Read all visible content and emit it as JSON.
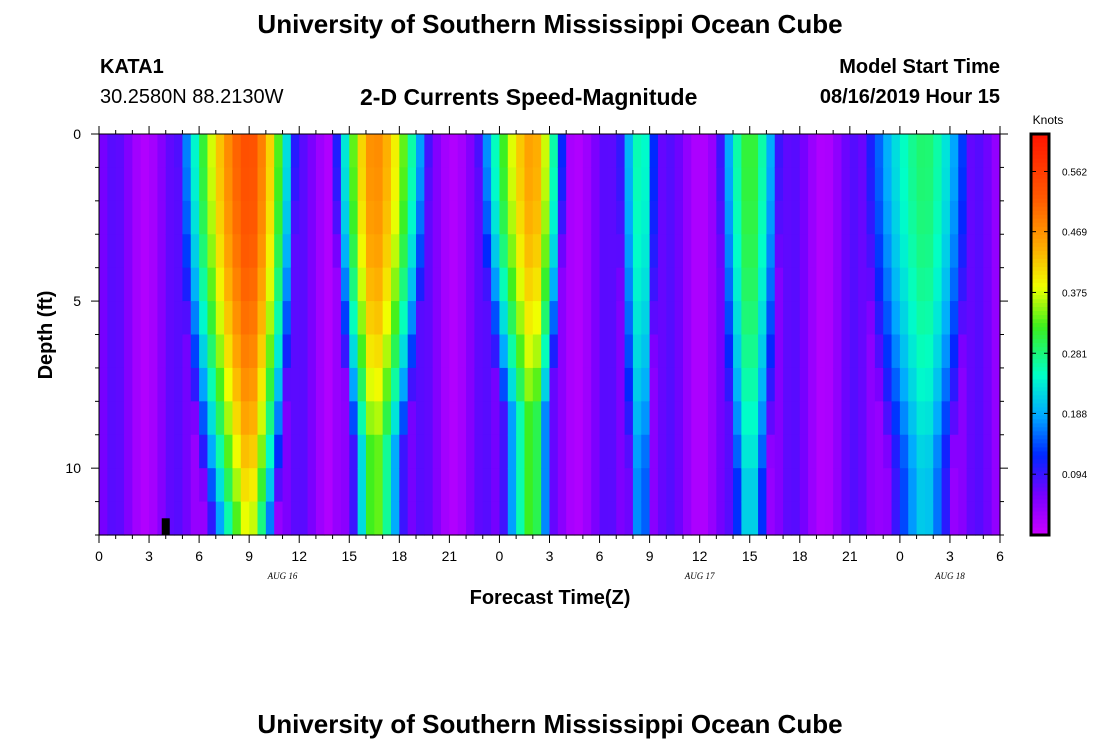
{
  "header": {
    "title": "University of Southern Mississippi Ocean Cube",
    "station": "KATA1",
    "coords": "30.2580N 88.2130W",
    "subtitle": "2-D Currents Speed-Magnitude",
    "model_start_label": "Model Start Time",
    "model_start_value": "08/16/2019 Hour 15"
  },
  "footer": {
    "title": "University of Southern Mississippi Ocean Cube"
  },
  "chart_data": {
    "type": "heatmap",
    "title": "2-D Currents Speed-Magnitude",
    "xlabel": "Forecast Time(Z)",
    "ylabel": "Depth (ft)",
    "x_hours": [
      0,
      54
    ],
    "x_tick_labels": [
      "0",
      "3",
      "6",
      "9",
      "12",
      "15",
      "18",
      "21",
      "0",
      "3",
      "6",
      "9",
      "12",
      "15",
      "18",
      "21",
      "0",
      "3",
      "6"
    ],
    "date_labels": [
      {
        "text": "AUG 16",
        "hour": 11
      },
      {
        "text": "AUG 17",
        "hour": 36
      },
      {
        "text": "AUG 18",
        "hour": 51
      }
    ],
    "ylim": [
      0,
      12
    ],
    "y_tick_labels": [
      "0",
      "5",
      "10"
    ],
    "y_tick_values": [
      0,
      5,
      10
    ],
    "colorbar": {
      "unit": "Knots",
      "min": 0.0,
      "max": 0.62,
      "tick_labels": [
        "0.094",
        "0.188",
        "0.281",
        "0.375",
        "0.469",
        "0.562"
      ],
      "tick_values": [
        0.094,
        0.188,
        0.281,
        0.375,
        0.469,
        0.562
      ]
    },
    "marker": {
      "hour": 4,
      "depth_range": [
        11.5,
        12
      ],
      "color": "#000000"
    },
    "speed_events": [
      {
        "start_hour": 4.5,
        "peak_hour": 9,
        "end_hour": 12,
        "peak": 0.5,
        "max_depth": 11.5
      },
      {
        "start_hour": 14,
        "peak_hour": 16.5,
        "end_hour": 20,
        "peak": 0.44,
        "max_depth": 9.5
      },
      {
        "start_hour": 22.5,
        "peak_hour": 26,
        "end_hour": 28,
        "peak": 0.42,
        "max_depth": 8.5
      },
      {
        "start_hour": 31,
        "peak_hour": 32.5,
        "end_hour": 33.5,
        "peak": 0.23,
        "max_depth": 10
      },
      {
        "start_hour": 37,
        "peak_hour": 39,
        "end_hour": 41,
        "peak": 0.28,
        "max_depth": 10.5
      },
      {
        "start_hour": 45.5,
        "peak_hour": 49.5,
        "end_hour": 52.5,
        "peak": 0.25,
        "max_depth": 10
      }
    ]
  }
}
